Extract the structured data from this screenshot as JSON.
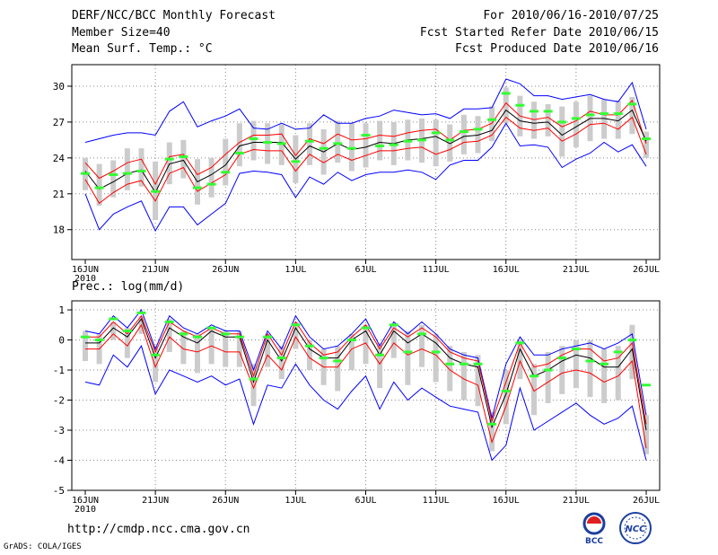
{
  "header": {
    "title": "DERF/NCC/BCC Monthly Forecast",
    "member": "Member Size=40",
    "variable": "Mean Surf. Temp.: °C",
    "period": "For 2010/06/16-2010/07/25",
    "fcst_started": "Fcst Started Refer Date 2010/06/15",
    "fcst_produced": "Fcst Produced Date 2010/06/16"
  },
  "footer": {
    "url": "http://cmdp.ncc.cma.gov.cn",
    "grads": "GrADS: COLA/IGES",
    "logo1": "BCC",
    "logo2": "NCC"
  },
  "colors": {
    "ensemble_max_min": "#0000ff",
    "spread": "#ff0000",
    "mean": "#000000",
    "member": "#33ff33",
    "box": "#cccccc",
    "grid": "#888888"
  },
  "chart_data": [
    {
      "type": "line",
      "title": "Mean Surf. Temp.: °C",
      "x_days": 40,
      "x_ticks": [
        {
          "day": 0,
          "label": "16JUN",
          "sub": "2010"
        },
        {
          "day": 5,
          "label": "21JUN"
        },
        {
          "day": 10,
          "label": "26JUN"
        },
        {
          "day": 15,
          "label": "1JUL"
        },
        {
          "day": 20,
          "label": "6JUL"
        },
        {
          "day": 25,
          "label": "11JUL"
        },
        {
          "day": 30,
          "label": "16JUL"
        },
        {
          "day": 35,
          "label": "21JUL"
        },
        {
          "day": 40,
          "label": "26JUL"
        }
      ],
      "ylim": [
        15.5,
        31.8
      ],
      "y_ticks": [
        18,
        21,
        24,
        27,
        30
      ],
      "grid": true,
      "series": [
        {
          "name": "max",
          "role": "max",
          "values": [
            25.3,
            25.6,
            25.9,
            26.1,
            26.1,
            25.9,
            27.9,
            28.7,
            26.6,
            27.1,
            27.5,
            28.1,
            26.5,
            26.4,
            26.9,
            26.4,
            26.5,
            27.6,
            26.9,
            26.9,
            27.3,
            27.5,
            28.0,
            27.8,
            27.6,
            27.7,
            27.3,
            28.1,
            28.1,
            28.2,
            30.6,
            30.2,
            29.2,
            29.2,
            28.9,
            29.1,
            29.3,
            28.9,
            28.7,
            30.3,
            26.4
          ]
        },
        {
          "name": "upper",
          "role": "upper",
          "values": [
            23.6,
            22.3,
            22.9,
            23.6,
            23.9,
            21.8,
            24.1,
            24.3,
            22.6,
            23.2,
            24.3,
            25.3,
            25.9,
            25.9,
            26.0,
            24.2,
            25.6,
            25.2,
            26.0,
            25.5,
            25.6,
            25.9,
            25.8,
            26.1,
            26.3,
            26.4,
            25.5,
            26.3,
            26.4,
            26.9,
            28.6,
            27.5,
            27.2,
            27.4,
            26.6,
            27.1,
            27.9,
            27.6,
            27.6,
            28.8,
            25.2
          ]
        },
        {
          "name": "mean",
          "role": "mean",
          "values": [
            22.9,
            21.4,
            22.0,
            22.7,
            23.0,
            21.1,
            23.5,
            23.8,
            22.0,
            22.6,
            23.4,
            25.0,
            25.3,
            25.3,
            25.3,
            23.9,
            25.0,
            24.5,
            25.2,
            24.7,
            24.9,
            25.3,
            25.2,
            25.5,
            25.6,
            25.8,
            25.2,
            25.8,
            25.9,
            26.3,
            28.0,
            27.1,
            26.9,
            27.0,
            25.9,
            26.6,
            27.3,
            27.3,
            27.1,
            28.0,
            25.4
          ]
        },
        {
          "name": "lower",
          "role": "lower",
          "values": [
            22.2,
            20.2,
            21.1,
            21.8,
            22.1,
            20.4,
            22.7,
            23.2,
            21.2,
            21.9,
            22.6,
            24.3,
            24.7,
            24.6,
            24.6,
            22.9,
            24.3,
            23.6,
            24.3,
            23.8,
            24.2,
            24.6,
            24.6,
            24.8,
            24.9,
            24.3,
            24.7,
            25.3,
            25.4,
            25.9,
            27.4,
            26.5,
            26.3,
            26.5,
            25.4,
            26.0,
            26.8,
            26.9,
            26.4,
            27.4,
            24.3
          ]
        },
        {
          "name": "min",
          "role": "min",
          "values": [
            21.0,
            18.0,
            19.3,
            19.9,
            20.4,
            17.9,
            19.9,
            19.9,
            18.4,
            19.3,
            20.2,
            22.7,
            22.9,
            22.8,
            22.6,
            20.7,
            22.4,
            21.8,
            22.8,
            22.1,
            22.6,
            22.8,
            22.8,
            23.0,
            22.8,
            22.2,
            23.4,
            23.8,
            23.8,
            24.9,
            26.9,
            25.0,
            25.1,
            24.9,
            23.2,
            23.9,
            24.4,
            25.3,
            24.5,
            25.1,
            23.3
          ]
        },
        {
          "name": "member",
          "role": "member",
          "values": [
            22.7,
            21.5,
            22.6,
            22.7,
            22.9,
            21.2,
            23.9,
            24.1,
            21.5,
            21.8,
            22.8,
            24.4,
            25.6,
            25.3,
            25.2,
            23.7,
            25.4,
            24.8,
            25.2,
            24.8,
            25.9,
            25.0,
            25.1,
            25.4,
            25.5,
            26.1,
            25.5,
            26.2,
            26.4,
            27.2,
            29.4,
            28.4,
            27.9,
            27.9,
            27.0,
            27.3,
            27.6,
            27.7,
            27.7,
            28.5,
            25.6
          ]
        },
        {
          "name": "box_top",
          "role": "box_top",
          "values": [
            24.0,
            23.5,
            23.8,
            24.8,
            24.8,
            23.7,
            25.3,
            25.5,
            23.9,
            24.0,
            25.6,
            26.9,
            27.1,
            26.9,
            26.8,
            25.9,
            26.9,
            26.4,
            27.1,
            26.9,
            26.9,
            27.1,
            27.0,
            27.2,
            27.3,
            27.2,
            26.8,
            27.6,
            27.5,
            28.3,
            29.9,
            29.2,
            28.7,
            28.5,
            28.3,
            28.7,
            29.2,
            28.9,
            28.8,
            29.1,
            26.2
          ]
        },
        {
          "name": "box_bottom",
          "role": "box_bottom",
          "values": [
            21.3,
            20.0,
            20.7,
            21.3,
            21.6,
            18.8,
            21.8,
            22.3,
            20.1,
            20.7,
            21.7,
            23.3,
            23.8,
            23.5,
            23.4,
            21.9,
            23.4,
            22.6,
            23.6,
            22.9,
            23.2,
            23.8,
            23.4,
            23.8,
            23.6,
            23.3,
            23.7,
            24.3,
            24.4,
            25.4,
            26.9,
            25.8,
            25.6,
            25.8,
            24.1,
            24.9,
            25.4,
            25.6,
            25.6,
            26.0,
            24.0
          ]
        }
      ]
    },
    {
      "type": "line",
      "title": "Prec.: log(mm/d)",
      "x_days": 40,
      "x_ticks": [
        {
          "day": 0,
          "label": "16JUN",
          "sub": "2010"
        },
        {
          "day": 5,
          "label": "21JUN"
        },
        {
          "day": 10,
          "label": "26JUN"
        },
        {
          "day": 15,
          "label": "1JUL"
        },
        {
          "day": 20,
          "label": "6JUL"
        },
        {
          "day": 25,
          "label": "11JUL"
        },
        {
          "day": 30,
          "label": "16JUL"
        },
        {
          "day": 35,
          "label": "21JUL"
        },
        {
          "day": 40,
          "label": "26JUL"
        }
      ],
      "ylim": [
        -5,
        1.3
      ],
      "y_ticks": [
        -5,
        -4,
        -3,
        -2,
        -1,
        0,
        1
      ],
      "grid": true,
      "series": [
        {
          "name": "max",
          "role": "max",
          "values": [
            0.3,
            0.2,
            0.8,
            0.4,
            1.0,
            -0.3,
            0.8,
            0.4,
            0.2,
            0.5,
            0.3,
            0.3,
            -1.0,
            0.3,
            -0.3,
            0.8,
            0.1,
            -0.3,
            -0.2,
            0.2,
            0.7,
            -0.2,
            0.6,
            0.2,
            0.6,
            0.2,
            -0.3,
            -0.5,
            -0.6,
            -2.6,
            -0.8,
            0.1,
            -0.5,
            -0.5,
            -0.3,
            -0.2,
            -0.1,
            -0.3,
            -0.1,
            0.2,
            -2.5
          ]
        },
        {
          "name": "upper",
          "role": "upper",
          "values": [
            0.1,
            0.1,
            0.6,
            0.2,
            0.8,
            -0.4,
            0.6,
            0.3,
            0.1,
            0.4,
            0.2,
            0.2,
            -1.2,
            0.2,
            -0.5,
            0.6,
            -0.1,
            -0.5,
            -0.4,
            0.1,
            0.5,
            -0.3,
            0.4,
            0.1,
            0.4,
            0.1,
            -0.4,
            -0.6,
            -0.7,
            -2.7,
            -1.4,
            -0.1,
            -0.9,
            -0.8,
            -0.5,
            -0.3,
            -0.3,
            -0.7,
            -0.6,
            -0.1,
            -2.8
          ]
        },
        {
          "name": "mean",
          "role": "mean",
          "values": [
            -0.1,
            -0.1,
            0.4,
            0.1,
            0.7,
            -0.6,
            0.4,
            0.1,
            -0.1,
            0.3,
            0.1,
            0.1,
            -1.4,
            0.0,
            -0.7,
            0.4,
            -0.3,
            -0.6,
            -0.6,
            0.0,
            0.3,
            -0.5,
            0.3,
            -0.1,
            0.2,
            -0.1,
            -0.6,
            -0.8,
            -0.9,
            -2.9,
            -1.8,
            -0.3,
            -1.2,
            -1.0,
            -0.7,
            -0.5,
            -0.6,
            -0.9,
            -0.9,
            -0.3,
            -3.0
          ]
        },
        {
          "name": "lower",
          "role": "lower",
          "values": [
            -0.3,
            -0.3,
            0.2,
            -0.2,
            0.5,
            -0.9,
            0.1,
            -0.3,
            -0.4,
            -0.2,
            -0.4,
            -0.4,
            -1.6,
            -0.5,
            -1.0,
            0.1,
            -0.6,
            -0.9,
            -0.9,
            -0.3,
            -0.1,
            -0.8,
            -0.1,
            -0.5,
            -0.3,
            -0.5,
            -1.0,
            -1.3,
            -1.5,
            -3.4,
            -2.2,
            -0.7,
            -1.7,
            -1.4,
            -1.1,
            -1.0,
            -1.1,
            -1.4,
            -1.2,
            -0.7,
            -3.6
          ]
        },
        {
          "name": "min",
          "role": "min",
          "values": [
            -1.4,
            -1.5,
            -0.5,
            -0.9,
            -0.2,
            -1.8,
            -1.0,
            -1.2,
            -1.4,
            -1.2,
            -1.5,
            -1.3,
            -2.8,
            -1.5,
            -1.6,
            -0.8,
            -1.5,
            -2.0,
            -2.3,
            -1.7,
            -1.2,
            -2.3,
            -1.4,
            -2.0,
            -1.6,
            -1.9,
            -2.2,
            -2.3,
            -2.4,
            -4.0,
            -3.5,
            -1.6,
            -3.0,
            -2.7,
            -2.4,
            -2.1,
            -2.5,
            -2.8,
            -2.6,
            -2.2,
            -4.0
          ]
        },
        {
          "name": "member",
          "role": "member",
          "values": [
            0.1,
            0.0,
            0.7,
            0.3,
            0.9,
            -0.5,
            0.6,
            0.2,
            0.1,
            0.4,
            0.2,
            0.1,
            -1.3,
            0.1,
            -0.6,
            0.5,
            -0.2,
            -0.6,
            -0.7,
            0.0,
            0.4,
            -0.5,
            0.5,
            -0.4,
            0.2,
            -0.4,
            -0.8,
            -0.8,
            -0.8,
            -2.8,
            -1.7,
            -0.1,
            -1.2,
            -1.0,
            -0.6,
            -0.3,
            -0.7,
            -0.8,
            -0.4,
            0.0,
            -1.5
          ]
        },
        {
          "name": "box_top",
          "role": "box_top",
          "values": [
            0.3,
            0.2,
            0.6,
            0.4,
            0.8,
            -0.2,
            0.7,
            0.3,
            0.2,
            0.4,
            0.3,
            0.3,
            -0.8,
            0.2,
            -0.2,
            0.6,
            0.0,
            -0.3,
            -0.2,
            0.2,
            0.5,
            -0.1,
            0.5,
            0.3,
            0.5,
            0.2,
            -0.2,
            -0.4,
            -0.5,
            -2.4,
            -1.0,
            0.0,
            -0.8,
            -0.4,
            -0.2,
            0.0,
            0.0,
            -0.3,
            -0.2,
            0.5,
            -2.5
          ]
        },
        {
          "name": "box_bottom",
          "role": "box_bottom",
          "values": [
            -0.7,
            -0.8,
            0.0,
            -0.6,
            0.2,
            -1.4,
            -0.4,
            -0.8,
            -1.1,
            -0.8,
            -0.9,
            -0.9,
            -2.2,
            -0.9,
            -1.3,
            -0.3,
            -1.0,
            -1.5,
            -1.7,
            -1.0,
            -0.8,
            -1.6,
            -0.6,
            -1.5,
            -0.9,
            -1.4,
            -1.7,
            -2.0,
            -2.2,
            -3.7,
            -2.8,
            -1.3,
            -2.5,
            -2.1,
            -1.8,
            -1.6,
            -1.9,
            -2.1,
            -2.0,
            -1.3,
            -3.8
          ]
        }
      ]
    }
  ]
}
